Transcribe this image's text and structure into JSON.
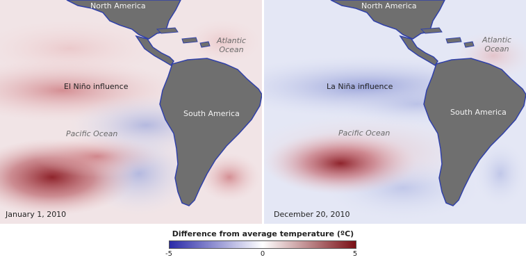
{
  "panels": [
    {
      "date": "January 1, 2010",
      "influence": "El Niño influence",
      "north_america": "North America",
      "south_america": "South America",
      "atlantic": [
        "Atlantic",
        "Ocean"
      ],
      "pacific": "Pacific Ocean"
    },
    {
      "date": "December 20, 2010",
      "influence": "La Niña influence",
      "north_america": "North America",
      "south_america": "South America",
      "atlantic": [
        "Atlantic",
        "Ocean"
      ],
      "pacific": "Pacific Ocean"
    }
  ],
  "legend": {
    "title": "Difference from average temperature (ºC)",
    "ticks": [
      "-5",
      "0",
      "5"
    ],
    "colors": {
      "cold": "#2a2aa8",
      "neutral": "#ffffff",
      "warm": "#7a0f15"
    },
    "range": [
      -5,
      5
    ]
  },
  "colors": {
    "land": "#6f6f6f",
    "coast": "#3040a8"
  }
}
